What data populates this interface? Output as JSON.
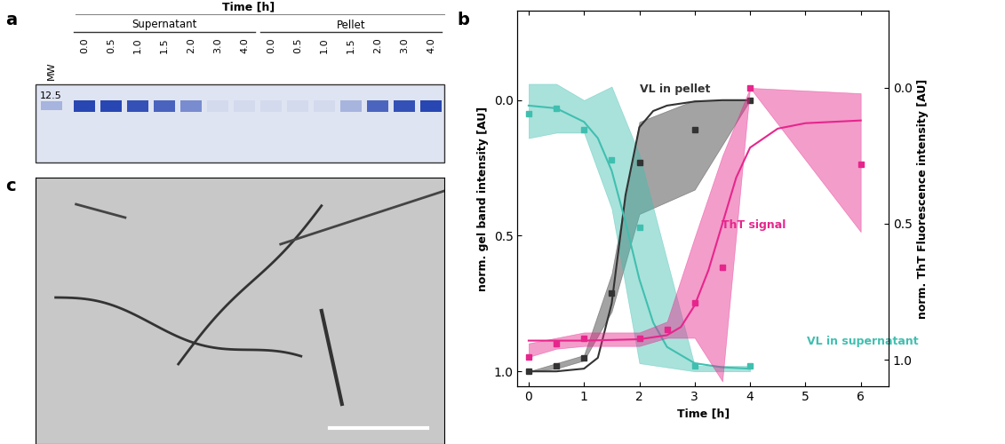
{
  "panel_labels": [
    "a",
    "b",
    "c"
  ],
  "gel": {
    "header": "Time [h]",
    "marker_lane": "MW",
    "marker_size": "12.5",
    "groups": [
      {
        "name": "Supernatant",
        "lanes": [
          "0.0",
          "0.5",
          "1.0",
          "1.5",
          "2.0",
          "3.0",
          "4.0"
        ]
      },
      {
        "name": "Pellet",
        "lanes": [
          "0.0",
          "0.5",
          "1.0",
          "1.5",
          "2.0",
          "3.0",
          "4.0"
        ]
      }
    ]
  },
  "chart_data": {
    "type": "line",
    "xlabel": "Time [h]",
    "ylabel": "norm. gel band intensity [AU]",
    "y2label": "norm. ThT Fluorescence intensity [AU]",
    "xlim": [
      -0.2,
      6.5
    ],
    "xticks": [
      0,
      1,
      2,
      3,
      4,
      5,
      6
    ],
    "ylim": [
      1.055,
      -0.33
    ],
    "yticks": [
      {
        "value": 0,
        "label": "0.0"
      },
      {
        "value": 0.5,
        "label": "0.5"
      },
      {
        "value": 1,
        "label": "1.0"
      }
    ],
    "y2lim": [
      1.098,
      -0.284
    ],
    "y2ticks": [
      {
        "value": 0,
        "label": "0.0"
      },
      {
        "value": 0.5,
        "label": "0.5"
      },
      {
        "value": 1,
        "label": "1.0"
      }
    ],
    "series": [
      {
        "name": "VL in pellet",
        "color": "#333333",
        "marker": "square",
        "x": [
          0,
          0.5,
          1,
          1.5,
          2,
          3,
          4
        ],
        "values": [
          1.0,
          0.98,
          0.95,
          0.71,
          0.23,
          0.11,
          0.0
        ],
        "band_low": [
          1.0,
          0.97,
          0.94,
          0.64,
          0.08,
          0.0,
          0.0
        ],
        "band_high": [
          1.0,
          0.99,
          0.96,
          0.78,
          0.42,
          0.33,
          0.0
        ],
        "fit_x": [
          0,
          0.5,
          1,
          1.25,
          1.5,
          1.75,
          2,
          2.25,
          2.5,
          3,
          3.5,
          4
        ],
        "fit_values": [
          1.0,
          1.0,
          0.99,
          0.95,
          0.75,
          0.35,
          0.1,
          0.04,
          0.02,
          0.005,
          0.0,
          0.0
        ]
      },
      {
        "name": "VL in supernatant",
        "color": "#40bfb0",
        "marker": "square",
        "x": [
          0,
          0.5,
          1,
          1.5,
          2,
          3,
          4
        ],
        "values": [
          0.05,
          0.03,
          0.11,
          0.22,
          0.47,
          0.98,
          0.98
        ],
        "band_low": [
          -0.06,
          -0.06,
          0.0,
          -0.05,
          0.2,
          0.98,
          0.98
        ],
        "band_high": [
          0.14,
          0.12,
          0.12,
          0.4,
          0.97,
          1.0,
          1.0
        ],
        "fit_x": [
          0,
          0.5,
          1,
          1.25,
          1.5,
          1.75,
          2,
          2.25,
          2.5,
          3,
          3.5,
          4
        ],
        "fit_values": [
          0.02,
          0.03,
          0.08,
          0.14,
          0.26,
          0.45,
          0.66,
          0.82,
          0.91,
          0.97,
          0.985,
          0.99
        ]
      },
      {
        "name": "ThT signal",
        "color": "#e6268c",
        "marker": "square",
        "axis": "y2",
        "x": [
          0,
          0.5,
          1,
          2,
          2.5,
          3,
          3.5,
          4,
          6
        ],
        "values": [
          0.99,
          0.94,
          0.92,
          0.92,
          0.89,
          0.79,
          0.66,
          0.0,
          0.28
        ],
        "band_low": [
          0.94,
          0.92,
          0.9,
          0.9,
          0.86,
          0.55,
          0.25,
          0.0,
          0.02
        ],
        "band_high": [
          0.99,
          0.96,
          0.95,
          0.95,
          0.92,
          0.92,
          1.08,
          0.0,
          0.53
        ],
        "fit_x": [
          0,
          1,
          2,
          2.5,
          2.75,
          3,
          3.25,
          3.5,
          3.75,
          4,
          4.5,
          5,
          6
        ],
        "fit_values": [
          0.93,
          0.93,
          0.925,
          0.91,
          0.88,
          0.8,
          0.67,
          0.5,
          0.33,
          0.22,
          0.15,
          0.13,
          0.12
        ]
      }
    ]
  }
}
